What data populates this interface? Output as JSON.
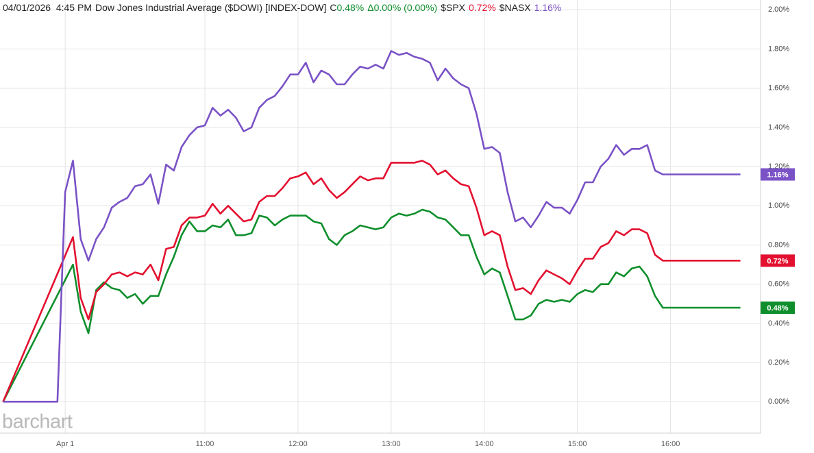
{
  "chart_data": {
    "type": "line",
    "title": "04/01/2026  4:45 PM",
    "change_prefix": "C",
    "delta": "Δ0.00% (0.00%)",
    "watermark": "barchart",
    "xlim": [
      "08:48",
      "16:58"
    ],
    "xticks": [
      {
        "value": "09:30",
        "label": "Apr 1"
      },
      "11:00",
      "12:00",
      "13:00",
      "14:00",
      "15:00",
      "16:00"
    ],
    "ylim": [
      -0.16,
      2.05
    ],
    "yticks": [
      {
        "value": 0,
        "label": "0.00%"
      },
      {
        "value": 0.2,
        "label": "0.20%"
      },
      {
        "value": 0.4,
        "label": "0.40%"
      },
      {
        "value": 0.6,
        "label": "0.60%"
      },
      {
        "value": 0.8,
        "label": "0.80%"
      },
      {
        "value": 1.0,
        "label": "1.00%"
      },
      {
        "value": 1.2,
        "label": "1.20%"
      },
      {
        "value": 1.4,
        "label": "1.40%"
      },
      {
        "value": 1.6,
        "label": "1.60%"
      },
      {
        "value": 1.8,
        "label": "1.80%"
      },
      {
        "value": 2.0,
        "label": "2.00%"
      }
    ],
    "grid": true,
    "series": [
      {
        "name": "Dow Jones Industrial Average ($DOWI) [INDEX-DOW]",
        "color": "#0f8f2c",
        "last_label": "0.48%",
        "x": [
          "08:50",
          "09:35",
          "09:40",
          "09:45",
          "09:50",
          "09:55",
          "10:00",
          "10:05",
          "10:10",
          "10:15",
          "10:20",
          "10:25",
          "10:30",
          "10:35",
          "10:40",
          "10:45",
          "10:50",
          "10:55",
          "11:00",
          "11:05",
          "11:10",
          "11:15",
          "11:20",
          "11:25",
          "11:30",
          "11:35",
          "11:40",
          "11:45",
          "11:50",
          "11:55",
          "12:00",
          "12:05",
          "12:10",
          "12:15",
          "12:20",
          "12:25",
          "12:30",
          "12:35",
          "12:40",
          "12:45",
          "12:50",
          "12:55",
          "13:00",
          "13:05",
          "13:10",
          "13:15",
          "13:20",
          "13:25",
          "13:30",
          "13:35",
          "13:40",
          "13:45",
          "13:50",
          "13:55",
          "14:00",
          "14:05",
          "14:10",
          "14:15",
          "14:20",
          "14:25",
          "14:30",
          "14:35",
          "14:40",
          "14:45",
          "14:50",
          "14:55",
          "15:00",
          "15:05",
          "15:10",
          "15:15",
          "15:20",
          "15:25",
          "15:30",
          "15:35",
          "15:40",
          "15:45",
          "15:50",
          "15:55",
          "16:00",
          "16:45"
        ],
        "values": [
          0,
          0.7,
          0.46,
          0.35,
          0.57,
          0.61,
          0.58,
          0.57,
          0.53,
          0.55,
          0.5,
          0.54,
          0.54,
          0.65,
          0.74,
          0.85,
          0.92,
          0.87,
          0.87,
          0.9,
          0.89,
          0.93,
          0.85,
          0.85,
          0.86,
          0.95,
          0.94,
          0.9,
          0.93,
          0.95,
          0.95,
          0.95,
          0.92,
          0.91,
          0.83,
          0.8,
          0.85,
          0.87,
          0.9,
          0.89,
          0.88,
          0.89,
          0.94,
          0.96,
          0.95,
          0.96,
          0.98,
          0.97,
          0.94,
          0.93,
          0.89,
          0.85,
          0.85,
          0.74,
          0.65,
          0.68,
          0.66,
          0.54,
          0.42,
          0.42,
          0.44,
          0.5,
          0.52,
          0.51,
          0.52,
          0.51,
          0.55,
          0.57,
          0.56,
          0.6,
          0.6,
          0.66,
          0.64,
          0.68,
          0.69,
          0.64,
          0.54,
          0.48,
          0.48,
          0.48
        ]
      },
      {
        "name": "$SPX",
        "color": "#e3102f",
        "last_label": "0.72%",
        "x": [
          "08:50",
          "09:35",
          "09:40",
          "09:45",
          "09:50",
          "09:55",
          "10:00",
          "10:05",
          "10:10",
          "10:15",
          "10:20",
          "10:25",
          "10:30",
          "10:35",
          "10:40",
          "10:45",
          "10:50",
          "10:55",
          "11:00",
          "11:05",
          "11:10",
          "11:15",
          "11:20",
          "11:25",
          "11:30",
          "11:35",
          "11:40",
          "11:45",
          "11:50",
          "11:55",
          "12:00",
          "12:05",
          "12:10",
          "12:15",
          "12:20",
          "12:25",
          "12:30",
          "12:35",
          "12:40",
          "12:45",
          "12:50",
          "12:55",
          "13:00",
          "13:05",
          "13:10",
          "13:15",
          "13:20",
          "13:25",
          "13:30",
          "13:35",
          "13:40",
          "13:45",
          "13:50",
          "13:55",
          "14:00",
          "14:05",
          "14:10",
          "14:15",
          "14:20",
          "14:25",
          "14:30",
          "14:35",
          "14:40",
          "14:45",
          "14:50",
          "14:55",
          "15:00",
          "15:05",
          "15:10",
          "15:15",
          "15:20",
          "15:25",
          "15:30",
          "15:35",
          "15:40",
          "15:45",
          "15:50",
          "15:55",
          "16:00",
          "16:45"
        ],
        "values": [
          0,
          0.84,
          0.53,
          0.42,
          0.56,
          0.6,
          0.65,
          0.66,
          0.64,
          0.66,
          0.65,
          0.7,
          0.62,
          0.78,
          0.79,
          0.9,
          0.94,
          0.94,
          0.95,
          1.01,
          0.96,
          1.0,
          0.96,
          0.92,
          0.93,
          1.02,
          1.05,
          1.05,
          1.09,
          1.14,
          1.15,
          1.17,
          1.11,
          1.14,
          1.08,
          1.04,
          1.07,
          1.11,
          1.15,
          1.13,
          1.14,
          1.14,
          1.22,
          1.22,
          1.22,
          1.22,
          1.23,
          1.21,
          1.16,
          1.18,
          1.14,
          1.11,
          1.1,
          0.99,
          0.85,
          0.87,
          0.85,
          0.69,
          0.57,
          0.58,
          0.55,
          0.62,
          0.67,
          0.65,
          0.63,
          0.6,
          0.67,
          0.73,
          0.73,
          0.79,
          0.81,
          0.87,
          0.85,
          0.88,
          0.88,
          0.86,
          0.75,
          0.72,
          0.72,
          0.72
        ]
      },
      {
        "name": "$NASX",
        "color": "#7a52c6",
        "last_label": "1.16%",
        "x": [
          "08:50",
          "09:25",
          "09:30",
          "09:35",
          "09:40",
          "09:45",
          "09:50",
          "09:55",
          "10:00",
          "10:05",
          "10:10",
          "10:15",
          "10:20",
          "10:25",
          "10:30",
          "10:35",
          "10:40",
          "10:45",
          "10:50",
          "10:55",
          "11:00",
          "11:05",
          "11:10",
          "11:15",
          "11:20",
          "11:25",
          "11:30",
          "11:35",
          "11:40",
          "11:45",
          "11:50",
          "11:55",
          "12:00",
          "12:05",
          "12:10",
          "12:15",
          "12:20",
          "12:25",
          "12:30",
          "12:35",
          "12:40",
          "12:45",
          "12:50",
          "12:55",
          "13:00",
          "13:05",
          "13:10",
          "13:15",
          "13:20",
          "13:25",
          "13:30",
          "13:35",
          "13:40",
          "13:45",
          "13:50",
          "13:55",
          "14:00",
          "14:05",
          "14:10",
          "14:15",
          "14:20",
          "14:25",
          "14:30",
          "14:35",
          "14:40",
          "14:45",
          "14:50",
          "14:55",
          "15:00",
          "15:05",
          "15:10",
          "15:15",
          "15:20",
          "15:25",
          "15:30",
          "15:35",
          "15:40",
          "15:45",
          "15:50",
          "15:55",
          "16:00",
          "16:45"
        ],
        "values": [
          0,
          0,
          1.07,
          1.23,
          0.83,
          0.72,
          0.83,
          0.89,
          0.99,
          1.02,
          1.04,
          1.1,
          1.11,
          1.16,
          1.01,
          1.21,
          1.18,
          1.3,
          1.36,
          1.4,
          1.41,
          1.5,
          1.46,
          1.49,
          1.45,
          1.38,
          1.4,
          1.5,
          1.54,
          1.56,
          1.61,
          1.67,
          1.67,
          1.73,
          1.63,
          1.69,
          1.67,
          1.62,
          1.62,
          1.67,
          1.71,
          1.7,
          1.72,
          1.7,
          1.79,
          1.77,
          1.78,
          1.76,
          1.75,
          1.73,
          1.64,
          1.7,
          1.65,
          1.62,
          1.6,
          1.47,
          1.29,
          1.3,
          1.27,
          1.07,
          0.92,
          0.94,
          0.89,
          0.95,
          1.02,
          0.99,
          0.99,
          0.96,
          1.03,
          1.12,
          1.12,
          1.2,
          1.24,
          1.31,
          1.26,
          1.29,
          1.29,
          1.31,
          1.18,
          1.16,
          1.16,
          1.16
        ]
      }
    ]
  }
}
